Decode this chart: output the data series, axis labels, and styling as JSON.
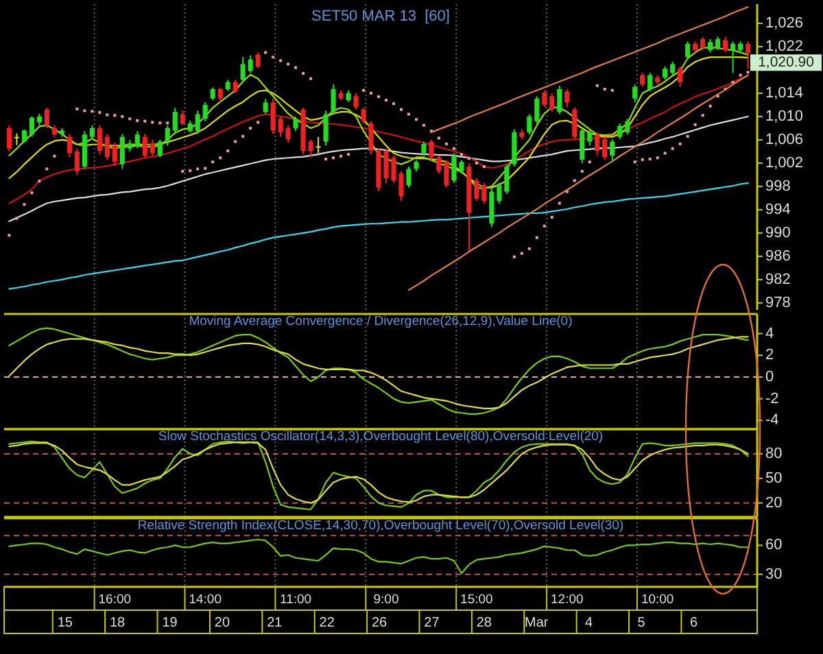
{
  "chart_data": [
    {
      "type": "candlestick",
      "title": "SET50 MAR 13  [60]",
      "tick_labels": "y",
      "grid": "x",
      "ohlc": [
        [
          1008,
          1008.5,
          1004,
          1004.5
        ],
        [
          1006.5,
          1007.1,
          1005.1,
          1006.5
        ],
        [
          1005.7,
          1007.8,
          1005.5,
          1007.6
        ],
        [
          1006.9,
          1010,
          1006.5,
          1009.8
        ],
        [
          1009,
          1010.5,
          1008.5,
          1010
        ],
        [
          1011.2,
          1011.5,
          1008,
          1008.5
        ],
        [
          1008,
          1008.5,
          1006.5,
          1006.9
        ],
        [
          1007,
          1008,
          1006.5,
          1007.6
        ],
        [
          1006.5,
          1007,
          1003,
          1003.7
        ],
        [
          1004,
          1004.5,
          1000,
          1000.6
        ],
        [
          1001.4,
          1007.5,
          1001,
          1006.9
        ],
        [
          1006.5,
          1008.5,
          1006,
          1008
        ],
        [
          1008,
          1008.5,
          1003.5,
          1004.1
        ],
        [
          1006.5,
          1007,
          1002.5,
          1003
        ],
        [
          1005,
          1005.5,
          1001.5,
          1002.2
        ],
        [
          1001.8,
          1007,
          1001,
          1006.5
        ],
        [
          1004.5,
          1006,
          1004,
          1005.4
        ],
        [
          1004.9,
          1007.5,
          1004.5,
          1006.9
        ],
        [
          1006.5,
          1007,
          1003,
          1003.3
        ],
        [
          1005.3,
          1006,
          1003.2,
          1003.7
        ],
        [
          1003.3,
          1006,
          1003,
          1005.7
        ],
        [
          1005.7,
          1008.5,
          1005,
          1008
        ],
        [
          1007.6,
          1011.5,
          1007,
          1010.8
        ],
        [
          1010.4,
          1011,
          1008.5,
          1008.8
        ],
        [
          1007.5,
          1009.3,
          1007.2,
          1008.8
        ],
        [
          1007.5,
          1011,
          1007,
          1010.4
        ],
        [
          1009.6,
          1012.5,
          1009.2,
          1012
        ],
        [
          1013.1,
          1015,
          1012.8,
          1014.7
        ],
        [
          1014.7,
          1015,
          1012.5,
          1013.1
        ],
        [
          1014.7,
          1016.3,
          1014.4,
          1015.9
        ],
        [
          1015.9,
          1016.3,
          1014,
          1014.3
        ],
        [
          1016.3,
          1020.2,
          1016,
          1019
        ],
        [
          1017.8,
          1020.5,
          1017.5,
          1019.8
        ],
        [
          1020.6,
          1021,
          1018.3,
          1018.6
        ],
        [
          1010.8,
          1013,
          1010.5,
          1012.4
        ],
        [
          1012.4,
          1013,
          1007,
          1007.6
        ],
        [
          1009.6,
          1010,
          1006.5,
          1007.3
        ],
        [
          1008,
          1008.5,
          1005.5,
          1006.1
        ],
        [
          1008,
          1010,
          1007.5,
          1009.6
        ],
        [
          1011.2,
          1011.5,
          1003.5,
          1004.1
        ],
        [
          1005.7,
          1006,
          1003,
          1004.1
        ],
        [
          1004.9,
          1006.5,
          1003.7,
          1004.9
        ],
        [
          1005.7,
          1011,
          1005,
          1010.4
        ],
        [
          1010.8,
          1015.5,
          1010.4,
          1014.7
        ],
        [
          1014,
          1014.5,
          1012.8,
          1013.1
        ],
        [
          1012.8,
          1014.5,
          1012.5,
          1014
        ],
        [
          1013.5,
          1014,
          1011.2,
          1011.6
        ],
        [
          1011.2,
          1011.5,
          1008.8,
          1009.2
        ],
        [
          1008.8,
          1009.2,
          1003.5,
          1004.1
        ],
        [
          1004.1,
          1004.5,
          997.2,
          997.8
        ],
        [
          1004.1,
          1004.5,
          998.6,
          999.4
        ],
        [
          1002.9,
          1003.3,
          998.6,
          999
        ],
        [
          1000.2,
          1000.6,
          995.5,
          996.3
        ],
        [
          998.2,
          1001.4,
          997.8,
          1001
        ],
        [
          1001,
          1002.5,
          1000.6,
          1002.2
        ],
        [
          1003.7,
          1005.7,
          1003.3,
          1005.3
        ],
        [
          1005.7,
          1006,
          1002.5,
          1003
        ],
        [
          1003,
          1003.3,
          1000.2,
          1000.6
        ],
        [
          1002.2,
          1002.5,
          997.8,
          998.2
        ],
        [
          999,
          1003.7,
          998.6,
          1003.3
        ],
        [
          1000.6,
          1002.5,
          1000.2,
          1002.2
        ],
        [
          1001.4,
          1002,
          986.9,
          993.5
        ],
        [
          999,
          999.4,
          995.5,
          995.9
        ],
        [
          998.2,
          998.6,
          995,
          995.5
        ],
        [
          991.6,
          997.8,
          991,
          997.1
        ],
        [
          995.5,
          998.6,
          995,
          998.2
        ],
        [
          997.1,
          1001.8,
          996.7,
          1001.4
        ],
        [
          1001.8,
          1007.8,
          1001.4,
          1007.3
        ],
        [
          1007.3,
          1007.8,
          1006.1,
          1006.5
        ],
        [
          1007.3,
          1010.4,
          1006.9,
          1010
        ],
        [
          1009.2,
          1013.5,
          1008.8,
          1013.1
        ],
        [
          1014.1,
          1014.5,
          1011.6,
          1012
        ],
        [
          1013.5,
          1014,
          1010.8,
          1011.2
        ],
        [
          1010.8,
          1015.3,
          1010.4,
          1014.7
        ],
        [
          1014.3,
          1014.7,
          1011.6,
          1012.4
        ],
        [
          1011.2,
          1011.6,
          1006.1,
          1006.5
        ],
        [
          1002.6,
          1008,
          1002,
          1007.6
        ],
        [
          1005.7,
          1007.6,
          1005,
          1007.3
        ],
        [
          1006.9,
          1007.3,
          1003.3,
          1004.1
        ],
        [
          1006.1,
          1006.5,
          1002.6,
          1003
        ],
        [
          1003.3,
          1006.1,
          1002.2,
          1005.7
        ],
        [
          1006.5,
          1008.8,
          1006.1,
          1008.4
        ],
        [
          1007.3,
          1009.6,
          1006.9,
          1009.2
        ],
        [
          1013.1,
          1015.5,
          1012.4,
          1015.1
        ],
        [
          1017.1,
          1017.5,
          1015.1,
          1015.5
        ],
        [
          1014.7,
          1017.5,
          1014.3,
          1017.1
        ],
        [
          1016.7,
          1017.1,
          1015.5,
          1015.9
        ],
        [
          1016.7,
          1018.6,
          1016.3,
          1018.2
        ],
        [
          1017.5,
          1019.4,
          1017.1,
          1019
        ],
        [
          1018.2,
          1018.6,
          1015.1,
          1015.9
        ],
        [
          1020.2,
          1022.9,
          1019.8,
          1022.5
        ],
        [
          1022.5,
          1022.9,
          1021,
          1021.4
        ],
        [
          1023.3,
          1023.7,
          1021.4,
          1021.8
        ],
        [
          1021.4,
          1023.3,
          1021,
          1022.8
        ],
        [
          1021.8,
          1023.7,
          1021.4,
          1023.3
        ],
        [
          1023.1,
          1023.7,
          1021,
          1021.4
        ],
        [
          1021.4,
          1022.9,
          1017.5,
          1022.5
        ],
        [
          1021.4,
          1022.9,
          1021,
          1022.5
        ],
        [
          1022.5,
          1022.9,
          1018.2,
          1020.9
        ]
      ],
      "colors": [
        "#ee2222",
        "#dddd22",
        "#22dd22",
        "#22dd22",
        "#22dd22",
        "#ee2222",
        "#ee2222",
        "#22dd22",
        "#ee2222",
        "#ee2222",
        "#22dd22",
        "#22dd22",
        "#ee2222",
        "#ee2222",
        "#ee2222",
        "#22dd22",
        "#22dd22",
        "#22dd22",
        "#ee2222",
        "#ee2222",
        "#22dd22",
        "#22dd22",
        "#22dd22",
        "#ee2222",
        "#22dd22",
        "#22dd22",
        "#22dd22",
        "#22dd22",
        "#ee2222",
        "#22dd22",
        "#ee2222",
        "#22dd22",
        "#22dd22",
        "#ee2222",
        "#22dd22",
        "#ee2222",
        "#ee2222",
        "#ee2222",
        "#22dd22",
        "#ee2222",
        "#ee2222",
        "#dddd22",
        "#22dd22",
        "#22dd22",
        "#ee2222",
        "#22dd22",
        "#ee2222",
        "#ee2222",
        "#ee2222",
        "#ee2222",
        "#ee2222",
        "#ee2222",
        "#ee2222",
        "#22dd22",
        "#22dd22",
        "#22dd22",
        "#ee2222",
        "#ee2222",
        "#ee2222",
        "#22dd22",
        "#22dd22",
        "#ee2222",
        "#ee2222",
        "#ee2222",
        "#22dd22",
        "#22dd22",
        "#22dd22",
        "#22dd22",
        "#ee2222",
        "#22dd22",
        "#22dd22",
        "#ee2222",
        "#ee2222",
        "#22dd22",
        "#ee2222",
        "#ee2222",
        "#22dd22",
        "#22dd22",
        "#ee2222",
        "#ee2222",
        "#22dd22",
        "#22dd22",
        "#22dd22",
        "#22dd22",
        "#ee2222",
        "#22dd22",
        "#ee2222",
        "#22dd22",
        "#22dd22",
        "#ee2222",
        "#22dd22",
        "#ee2222",
        "#ee2222",
        "#22dd22",
        "#22dd22",
        "#ee2222",
        "#22dd22",
        "#22dd22",
        "#ee2222"
      ],
      "series": [
        {
          "type": "line",
          "color": "#33ddee",
          "values": [
            980.4,
            980.6,
            980.8,
            981.1,
            981.3,
            981.6,
            981.8,
            982,
            982.3,
            982.5,
            982.8,
            983,
            983.2,
            983.4,
            983.6,
            983.8,
            984,
            984.2,
            984.4,
            984.6,
            984.8,
            985,
            985.2,
            985.3,
            985.6,
            985.9,
            986.2,
            986.5,
            986.8,
            987.1,
            987.5,
            987.8,
            988.2,
            988.5,
            988.9,
            989.2,
            989.4,
            989.6,
            989.8,
            990,
            990.2,
            990.5,
            990.7,
            991,
            991.2,
            991.3,
            991.4,
            991.5,
            991.6,
            991.6,
            991.7,
            991.8,
            991.9,
            991.9,
            992,
            992.1,
            992.2,
            992.3,
            992.3,
            992.4,
            992.5,
            992.6,
            992.7,
            992.8,
            992.9,
            993,
            993.1,
            993.2,
            993.3,
            993.4,
            993.4,
            993.5,
            993.7,
            993.9,
            994.1,
            994.4,
            994.6,
            994.9,
            995.1,
            995.3,
            995.4,
            995.6,
            995.8,
            995.9,
            996,
            996.1,
            996.2,
            996.3,
            996.5,
            996.7,
            996.9,
            997.1,
            997.3,
            997.5,
            997.7,
            997.9,
            998.1,
            998.4,
            998.6
          ]
        },
        {
          "type": "line",
          "color": "#dddddd",
          "values": [
            992,
            992.6,
            993.2,
            993.8,
            994.5,
            995.1,
            995.4,
            995.6,
            995.8,
            996,
            996.1,
            996.3,
            996.5,
            996.6,
            996.8,
            997,
            997.1,
            997.3,
            997.5,
            997.6,
            997.8,
            998.1,
            998.5,
            998.9,
            999.3,
            999.7,
            1000.1,
            1000.4,
            1000.7,
            1001,
            1001.3,
            1001.6,
            1001.9,
            1002.2,
            1002.5,
            1002.7,
            1002.8,
            1002.9,
            1003,
            1003.1,
            1003.3,
            1003.5,
            1003.8,
            1004,
            1004.2,
            1004.3,
            1004.4,
            1004.5,
            1004.5,
            1004.4,
            1004.2,
            1004,
            1003.8,
            1003.7,
            1003.6,
            1003.5,
            1003.5,
            1003.4,
            1003.4,
            1003.3,
            1003.1,
            1002.9,
            1002.7,
            1002.5,
            1002.3,
            1002.3,
            1002.4,
            1002.5,
            1002.7,
            1002.9,
            1003.1,
            1003.3,
            1003.5,
            1003.8,
            1004.1,
            1004.2,
            1004.3,
            1004.4,
            1004.5,
            1004.6,
            1004.6,
            1004.7,
            1004.8,
            1004.9,
            1005.2,
            1005.5,
            1005.8,
            1006.2,
            1006.5,
            1006.9,
            1007.3,
            1007.7,
            1008.1,
            1008.5,
            1008.8,
            1009.1,
            1009.4,
            1009.7,
            1010
          ]
        },
        {
          "type": "line",
          "color": "#cc1111",
          "values": [
            995.1,
            995.8,
            996.6,
            997.5,
            999,
            999.6,
            1000.1,
            1000.5,
            1000.8,
            1001,
            1001.1,
            1001.2,
            1001.3,
            1001.5,
            1001.8,
            1002,
            1002.3,
            1002.6,
            1002.9,
            1003.1,
            1003.3,
            1003.7,
            1004.1,
            1004.5,
            1004.9,
            1005.5,
            1006.1,
            1006.6,
            1007.3,
            1007.9,
            1008.5,
            1009.1,
            1009.6,
            1010.1,
            1010.4,
            1010.3,
            1010,
            1009.8,
            1009.5,
            1009.2,
            1009,
            1008.9,
            1008.8,
            1008.7,
            1008.6,
            1008.4,
            1008.2,
            1008,
            1007.7,
            1007.4,
            1007.1,
            1006.8,
            1006.5,
            1006.1,
            1005.8,
            1005.5,
            1005.1,
            1004.8,
            1004.4,
            1004.1,
            1003.6,
            1003,
            1002.3,
            1001.4,
            1001.2,
            1001.4,
            1001.8,
            1002.5,
            1003.3,
            1004.1,
            1004.8,
            1005.3,
            1005.7,
            1005.9,
            1006,
            1006.1,
            1006.1,
            1006.2,
            1006.3,
            1006.5,
            1006.8,
            1007.2,
            1007.8,
            1008.4,
            1009,
            1009.6,
            1010.2,
            1010.8,
            1011.6,
            1012.2,
            1012.8,
            1013.4,
            1013.9,
            1014.3,
            1014.8,
            1015.3,
            1015.9,
            1016.5,
            1017
          ]
        },
        {
          "type": "line",
          "color": "#dddd00",
          "values": [
            999.4,
            1000.5,
            1001.8,
            1003,
            1004.2,
            1005.2,
            1005.8,
            1006,
            1005.8,
            1005.2,
            1005,
            1005.2,
            1005.2,
            1005,
            1005,
            1005,
            1005.2,
            1005.2,
            1005.2,
            1005.2,
            1005.3,
            1005.6,
            1006,
            1006.4,
            1006.8,
            1007.3,
            1008,
            1009,
            1010,
            1011,
            1011.8,
            1012.5,
            1013.5,
            1014.3,
            1014.5,
            1014,
            1013.1,
            1012,
            1011,
            1010,
            1009.4,
            1009.6,
            1010,
            1010.5,
            1010.8,
            1010.8,
            1010.3,
            1009.5,
            1008,
            1006.5,
            1005,
            1003.7,
            1003.2,
            1002.9,
            1002.8,
            1002.8,
            1002.7,
            1002.5,
            1002.2,
            1001.5,
            1000.5,
            999.4,
            998.5,
            997.8,
            997.8,
            998.3,
            999,
            1000.3,
            1001.6,
            1003,
            1005,
            1007,
            1008.6,
            1009.2,
            1009.3,
            1008.8,
            1008,
            1007.2,
            1006.8,
            1006.5,
            1006.5,
            1007,
            1008,
            1010,
            1012,
            1013.5,
            1014.3,
            1015,
            1015.8,
            1017,
            1018.5,
            1019.4,
            1019.9,
            1020.2,
            1020.2,
            1020.2,
            1020.2,
            1020.2,
            1020.1
          ]
        },
        {
          "type": "line",
          "color": "#99dd00",
          "values": [
            1003.3,
            1004.5,
            1005.8,
            1007,
            1008.3,
            1008.5,
            1007.8,
            1007,
            1006,
            1005.2,
            1005.5,
            1006.2,
            1005.5,
            1004.8,
            1004.5,
            1004.8,
            1004.8,
            1005,
            1004.8,
            1004.8,
            1005,
            1006,
            1007.2,
            1007.8,
            1008,
            1008.8,
            1010,
            1011.5,
            1012.5,
            1013.5,
            1014.5,
            1016,
            1017.2,
            1016.5,
            1015,
            1013.5,
            1012,
            1010.5,
            1009.5,
            1008.8,
            1008,
            1008.5,
            1009.8,
            1011,
            1011.5,
            1011.2,
            1010,
            1007.5,
            1005.5,
            1003.5,
            1002.8,
            1002.2,
            1001.8,
            1002.3,
            1003,
            1003,
            1002.5,
            1002,
            1001.5,
            1001,
            1000.5,
            999.4,
            997.8,
            997.6,
            998,
            999.5,
            1001,
            1003,
            1004.5,
            1006,
            1008.5,
            1010.5,
            1011.6,
            1011.5,
            1010.8,
            1009.8,
            1008.8,
            1007.8,
            1006.9,
            1006.8,
            1006.9,
            1007.8,
            1008.8,
            1011.5,
            1014,
            1014.7,
            1015.2,
            1016,
            1017,
            1017.8,
            1020,
            1021,
            1021.8,
            1021.8,
            1021.8,
            1021.5,
            1021.4,
            1021,
            1020.6
          ]
        },
        {
          "type": "scatter",
          "color": "#e8a0a0",
          "marker": "square",
          "values": [
            989.6,
            992.5,
            994.9,
            996.9,
            998.9,
            1001,
            1003.2,
            null,
            null,
            1011.3,
            1011,
            1010.9,
            1010.7,
            1010.3,
            1010.2,
            1010,
            1009.6,
            1009.3,
            1009.2,
            1009,
            1008.9,
            1008.9,
            null,
            1000.6,
            1000.7,
            1001,
            1001.1,
            1002.2,
            1002.9,
            1004.1,
            1005.7,
            1006.6,
            1008,
            1009,
            1021,
            1020.2,
            1019.6,
            1019,
            1018.4,
            1017.4,
            1016.5,
            null,
            1002.7,
            1002.9,
            1003.2,
            1003.5,
            null,
            1014.5,
            1014,
            1013.4,
            1012.8,
            1012.2,
            1011.2,
            1010.4,
            1009.5,
            1008.5,
            1007.5,
            1006.3,
            1005.3,
            1004.5,
            1003.5,
            1002.8,
            1002,
            1001.4,
            null,
            null,
            null,
            985.9,
            986.5,
            987.3,
            989.2,
            991.2,
            992.7,
            995.1,
            997.1,
            999,
            1000.6,
            1002.2,
            1015.3,
            1014.7,
            1014.5,
            null,
            null,
            1002.2,
            1002.6,
            1002.7,
            1002.9,
            1003.7,
            1004.5,
            1005.3,
            1006.6,
            1008.6,
            1010.2,
            1011.8,
            1013.5,
            1014.7,
            1015.9,
            1017.1,
            1017.6
          ]
        },
        {
          "type": "line",
          "color": "#e08040",
          "values": [
            null,
            null,
            null,
            null,
            null,
            null,
            null,
            null,
            null,
            null,
            null,
            null,
            null,
            null,
            null,
            null,
            null,
            null,
            null,
            null,
            null,
            null,
            null,
            null,
            null,
            null,
            null,
            null,
            null,
            null,
            null,
            null,
            null,
            null,
            null,
            null,
            null,
            null,
            null,
            null,
            null,
            null,
            null,
            null,
            null,
            null,
            null,
            null,
            null,
            null,
            null,
            null,
            null,
            null,
            null,
            null,
            1007.3,
            1007.8,
            1008.3,
            1008.8,
            1009.3,
            1009.9,
            1010.4,
            1010.9,
            1011.4,
            1011.9,
            1012.4,
            1013,
            1013.5,
            1014,
            1014.5,
            1015,
            1015.5,
            1016,
            1016.5,
            1017,
            1017.5,
            1018.1,
            1018.6,
            1019.1,
            1019.6,
            1020.1,
            1020.6,
            1021.1,
            1021.6,
            1022.1,
            1022.6,
            1023.2,
            1023.7,
            1024.2,
            1024.7,
            1025.2,
            1025.7,
            1026.2,
            1026.7,
            1027.2,
            1027.8,
            1028.3,
            1028.8
          ]
        },
        {
          "type": "line",
          "color": "#e08040",
          "values": [
            null,
            null,
            null,
            null,
            null,
            null,
            null,
            null,
            null,
            null,
            null,
            null,
            null,
            null,
            null,
            null,
            null,
            null,
            null,
            null,
            null,
            null,
            null,
            null,
            null,
            null,
            null,
            null,
            null,
            null,
            null,
            null,
            null,
            null,
            null,
            null,
            null,
            null,
            null,
            null,
            null,
            null,
            null,
            null,
            null,
            null,
            null,
            null,
            null,
            null,
            null,
            null,
            null,
            980.2,
            981,
            981.8,
            982.7,
            983.5,
            984.3,
            985.1,
            985.9,
            986.8,
            987.6,
            988.4,
            989.2,
            990,
            990.9,
            991.7,
            992.5,
            993.3,
            994.1,
            995,
            995.8,
            996.6,
            997.4,
            998.2,
            999.1,
            999.9,
            1000.7,
            1001.5,
            1002.3,
            1003.2,
            1004,
            1004.8,
            1005.6,
            1006.4,
            1007.3,
            1008.1,
            1008.9,
            1009.7,
            1010.5,
            1011.4,
            1012.2,
            1013,
            1013.8,
            1014.6,
            1015.5,
            1016.3,
            1017.1
          ]
        }
      ],
      "ylim": [
        976.8,
        1029.3
      ],
      "yticks": [
        978,
        982,
        986,
        990,
        994,
        998,
        {
          "value": 1002,
          "label": "1,002"
        },
        {
          "value": 1006,
          "label": "1,006"
        },
        {
          "value": 1010,
          "label": "1,010"
        },
        {
          "value": 1014,
          "label": "1,014"
        },
        {
          "value": 1018,
          "label": null
        },
        {
          "value": 1022,
          "label": "1,022"
        },
        {
          "value": 1026,
          "label": "1,026"
        }
      ],
      "annotations": [
        "1,020.90"
      ]
    },
    {
      "type": "line",
      "title": "Moving Average Convergence / Divergence(26,12,9),Value Line(0)",
      "tick_labels": "y",
      "grid": "x",
      "series": [
        {
          "color": "#77cc11",
          "values": [
            2.9,
            3.3,
            3.7,
            4.1,
            4.4,
            4.5,
            4.4,
            4.2,
            4,
            3.8,
            3.6,
            3.4,
            3.2,
            3,
            2.7,
            2.4,
            2.1,
            1.9,
            1.7,
            1.6,
            1.7,
            1.8,
            2,
            2,
            2.1,
            2.3,
            2.6,
            2.9,
            3.2,
            3.5,
            3.8,
            3.9,
            3.9,
            3.6,
            3.2,
            2.7,
            2.2,
            1.8,
            1,
            0.2,
            -0.4,
            0,
            0.6,
            0.8,
            0.8,
            0.7,
            0.4,
            -0.2,
            -0.6,
            -1,
            -1.5,
            -2,
            -2.3,
            -2.4,
            -2.3,
            -2.2,
            -2.1,
            -2.5,
            -2.9,
            -3.2,
            -3.3,
            -3.4,
            -3.4,
            -3.3,
            -3.1,
            -2.8,
            -2,
            -1,
            -0.1,
            0.7,
            1.3,
            1.7,
            1.9,
            1.9,
            1.7,
            1.4,
            1,
            0.8,
            0.8,
            0.8,
            0.8,
            1.2,
            1.8,
            2.1,
            2.4,
            2.6,
            2.7,
            2.8,
            3,
            3.3,
            3.5,
            3.7,
            3.9,
            3.9,
            3.9,
            3.8,
            3.7,
            3.5,
            3.4
          ]
        },
        {
          "color": "#dddd44",
          "values": [
            0.1,
            0.8,
            1.5,
            2.1,
            2.6,
            3,
            3.2,
            3.4,
            3.5,
            3.5,
            3.5,
            3.4,
            3.3,
            3.2,
            3,
            2.9,
            2.7,
            2.6,
            2.4,
            2.3,
            2.2,
            2.2,
            2.1,
            2.1,
            2,
            2.1,
            2.3,
            2.5,
            2.7,
            2.9,
            3,
            3.1,
            3.1,
            3,
            2.8,
            2.5,
            2.3,
            2.1,
            1.6,
            1.2,
            1,
            0.8,
            0.7,
            0.7,
            0.7,
            0.7,
            0.6,
            0.6,
            0.4,
            0.1,
            -0.3,
            -0.8,
            -1.3,
            -1.5,
            -1.7,
            -1.9,
            -2,
            -2.1,
            -2.2,
            -2.4,
            -2.6,
            -2.7,
            -2.8,
            -2.9,
            -2.9,
            -2.8,
            -2.4,
            -1.8,
            -1.2,
            -0.8,
            -0.5,
            -0.1,
            0.3,
            0.6,
            0.9,
            1,
            1.1,
            1.1,
            1.1,
            1.1,
            1.1,
            1.2,
            1.2,
            1.4,
            1.6,
            1.8,
            1.9,
            2,
            2.1,
            2.3,
            2.6,
            2.8,
            3,
            3.2,
            3.4,
            3.5,
            3.6,
            3.7,
            3.7
          ]
        }
      ],
      "ylim": [
        -4.8,
        5.8
      ],
      "yticks": [
        -4,
        -2,
        0,
        2,
        4
      ],
      "ref_lines": [
        {
          "axis": "y",
          "value": 0,
          "color": "#e0a8a8",
          "line_style": "dashed"
        }
      ]
    },
    {
      "type": "line",
      "title": "Slow Stochastics Oscillator(14,3,3),Overbought Level(80),Oversold Level(20)",
      "tick_labels": "y",
      "grid": "x",
      "series": [
        {
          "color": "#77cc11",
          "values": [
            92,
            93,
            94,
            95,
            94,
            94,
            88,
            75,
            62,
            54,
            51,
            60,
            70,
            55,
            40,
            32,
            35,
            38,
            44,
            48,
            50,
            62,
            76,
            86,
            80,
            78,
            85,
            92,
            94,
            95,
            94,
            93,
            94,
            94,
            70,
            40,
            18,
            15,
            14,
            13,
            12,
            25,
            45,
            57,
            54,
            52,
            50,
            40,
            28,
            20,
            17,
            16,
            15,
            20,
            30,
            35,
            35,
            30,
            27,
            27,
            27,
            27,
            35,
            45,
            50,
            60,
            72,
            82,
            88,
            91,
            92,
            92,
            92,
            92,
            92,
            90,
            80,
            60,
            50,
            45,
            43,
            45,
            55,
            75,
            92,
            93,
            92,
            90,
            90,
            91,
            92,
            93,
            93,
            93,
            93,
            92,
            90,
            85,
            77
          ]
        },
        {
          "color": "#dddd44",
          "values": [
            89,
            90,
            92,
            93,
            93,
            93,
            90,
            84,
            75,
            67,
            64,
            62,
            60,
            55,
            48,
            42,
            42,
            45,
            48,
            50,
            52,
            58,
            65,
            73,
            76,
            80,
            85,
            89,
            92,
            93,
            94,
            94,
            94,
            93,
            85,
            62,
            42,
            30,
            25,
            22,
            20,
            24,
            35,
            45,
            49,
            51,
            52,
            49,
            42,
            33,
            27,
            24,
            22,
            21,
            23,
            28,
            30,
            30,
            29,
            28,
            27,
            27,
            30,
            36,
            44,
            52,
            60,
            70,
            80,
            85,
            88,
            90,
            91,
            91,
            91,
            90,
            85,
            75,
            62,
            55,
            50,
            48,
            52,
            62,
            72,
            78,
            82,
            85,
            87,
            88,
            89,
            90,
            90,
            91,
            91,
            90,
            88,
            85,
            80
          ]
        }
      ],
      "ylim": [
        3,
        110
      ],
      "yticks": [
        20,
        50,
        80
      ],
      "ref_lines": [
        {
          "axis": "y",
          "value": 80,
          "color": "#b85555",
          "line_style": "dashed"
        },
        {
          "axis": "y",
          "value": 20,
          "color": "#b85555",
          "line_style": "dashed"
        }
      ]
    },
    {
      "type": "line",
      "title": "Relative Strength Index(CLOSE,14,30,70),Overbought Level(70),Oversold Level(30)",
      "grid": "x",
      "categories": [
        null,
        null,
        null,
        null,
        null,
        null,
        null,
        null,
        null,
        null,
        null,
        null,
        null,
        null,
        "16:00",
        null,
        null,
        null,
        null,
        null,
        null,
        null,
        null,
        null,
        null,
        null,
        "14:00",
        null,
        null,
        null,
        null,
        null,
        null,
        null,
        null,
        null,
        null,
        null,
        "11:00",
        null,
        null,
        null,
        null,
        null,
        null,
        null,
        null,
        null,
        null,
        null,
        "9:00",
        null,
        null,
        null,
        null,
        null,
        null,
        null,
        null,
        null,
        null,
        null,
        "15:00",
        null,
        null,
        null,
        null,
        null,
        null,
        null,
        null,
        null,
        null,
        null,
        "12:00",
        null,
        null,
        null,
        null,
        null,
        null,
        null,
        null,
        null,
        null,
        null,
        "10:00",
        null,
        null,
        null,
        null,
        null,
        null,
        null,
        null,
        null,
        null,
        null,
        null
      ],
      "series": [
        {
          "color": "#77cc11",
          "values": [
            59,
            60,
            61,
            62,
            62,
            61,
            58,
            56,
            53,
            51,
            56,
            54,
            52,
            50,
            52,
            54,
            55,
            53,
            52,
            55,
            57,
            58,
            60,
            58,
            58,
            60,
            62,
            63,
            62,
            62,
            63,
            64,
            65,
            66,
            65,
            58,
            49,
            50,
            47,
            46,
            45,
            44,
            50,
            57,
            56,
            56,
            55,
            52,
            46,
            43,
            43,
            42,
            41,
            44,
            47,
            48,
            46,
            46,
            47,
            44,
            31,
            40,
            45,
            46,
            47,
            48,
            50,
            51,
            52,
            54,
            56,
            59,
            58,
            57,
            55,
            55,
            50,
            49,
            50,
            53,
            55,
            58,
            60,
            60,
            61,
            61,
            62,
            63,
            63,
            62,
            62,
            61,
            62,
            61,
            62,
            61,
            60,
            58,
            58
          ]
        }
      ],
      "ylim": [
        17,
        88
      ],
      "yticks": [
        30,
        60
      ],
      "ref_lines": [
        {
          "axis": "y",
          "value": 70,
          "color": "#b85555",
          "line_style": "dashed"
        },
        {
          "axis": "y",
          "value": 30,
          "color": "#b85555",
          "line_style": "dashed"
        }
      ],
      "annotations": [
        "15",
        "18",
        "19",
        "20",
        "21",
        "22",
        "26",
        "27",
        "28",
        "Mar",
        "4",
        "5",
        "6"
      ]
    }
  ]
}
